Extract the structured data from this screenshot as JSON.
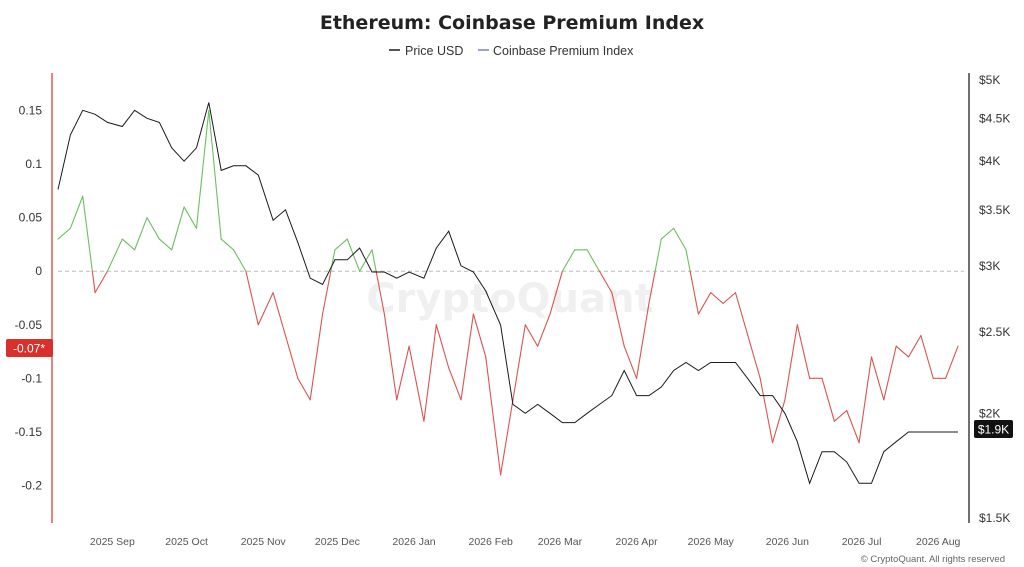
{
  "chart_data": {
    "type": "line",
    "title": "Ethereum: Coinbase Premium Index",
    "watermark": "CryptoQuant",
    "credit": "© CryptoQuant. All rights reserved",
    "current_premium_label": "-0.07*",
    "current_price_label": "$1.9K",
    "legend": [
      "Price USD",
      "Coinbase Premium Index"
    ],
    "x_tick_labels": [
      "2025 Sep",
      "2025 Oct",
      "2025 Nov",
      "2025 Dec",
      "2026 Jan",
      "2026 Feb",
      "2026 Mar",
      "2026 Apr",
      "2026 May",
      "2026 Jun",
      "2026 Jul",
      "2026 Aug"
    ],
    "left_axis": {
      "ticks": [
        0.15,
        0.1,
        0.05,
        0,
        -0.05,
        -0.1,
        -0.15,
        -0.2
      ],
      "tick_labels": [
        "0.15",
        "0.1",
        "0.05",
        "0",
        "-0.05",
        "-0.1",
        "-0.15",
        "-0.2"
      ],
      "range": [
        -0.235,
        0.185
      ]
    },
    "right_axis": {
      "scale": "log",
      "ticks": [
        1500,
        2000,
        2500,
        3000,
        3500,
        4000,
        4500,
        5000
      ],
      "tick_labels": [
        "$1.5K",
        "$2K",
        "$2.5K",
        "$3K",
        "$3.5K",
        "$4K",
        "$4.5K",
        "$5K"
      ],
      "range": [
        1500,
        5000
      ]
    },
    "colors": {
      "price": "#1a1a1a",
      "premium_positive": "#6abf5e",
      "premium_negative": "#d9534f",
      "zero_line": "#bbbbbb",
      "badge_premium": "#d9302c",
      "badge_price": "#111111",
      "left_axis_line": "#d9302c",
      "right_axis_line": "#111111"
    },
    "series": [
      {
        "name": "Price USD",
        "axis": "right",
        "x": [
          "2025-08-10",
          "2025-08-15",
          "2025-08-20",
          "2025-08-25",
          "2025-08-30",
          "2025-09-05",
          "2025-09-10",
          "2025-09-15",
          "2025-09-20",
          "2025-09-25",
          "2025-09-30",
          "2025-10-05",
          "2025-10-10",
          "2025-10-15",
          "2025-10-20",
          "2025-10-25",
          "2025-10-30",
          "2025-11-05",
          "2025-11-10",
          "2025-11-15",
          "2025-11-20",
          "2025-11-25",
          "2025-11-30",
          "2025-12-05",
          "2025-12-10",
          "2025-12-15",
          "2025-12-20",
          "2025-12-25",
          "2025-12-30",
          "2026-01-05",
          "2026-01-10",
          "2026-01-15",
          "2026-01-20",
          "2026-01-25",
          "2026-01-30",
          "2026-02-05",
          "2026-02-10",
          "2026-02-15",
          "2026-02-20",
          "2026-02-25",
          "2026-03-02",
          "2026-03-07",
          "2026-03-12",
          "2026-03-17",
          "2026-03-22",
          "2026-03-27",
          "2026-04-01",
          "2026-04-06",
          "2026-04-11",
          "2026-04-16",
          "2026-04-21",
          "2026-04-26",
          "2026-05-01",
          "2026-05-06",
          "2026-05-11",
          "2026-05-16",
          "2026-05-21",
          "2026-05-26",
          "2026-05-31",
          "2026-06-05",
          "2026-06-10",
          "2026-06-15",
          "2026-06-20",
          "2026-06-25",
          "2026-06-30",
          "2026-07-05",
          "2026-07-10",
          "2026-07-15",
          "2026-07-20",
          "2026-07-25",
          "2026-07-30",
          "2026-08-04",
          "2026-08-09"
        ],
        "values": [
          3700,
          4300,
          4600,
          4550,
          4450,
          4400,
          4600,
          4500,
          4450,
          4150,
          4000,
          4150,
          4700,
          3900,
          3950,
          3950,
          3850,
          3400,
          3500,
          3200,
          2900,
          2850,
          3050,
          3050,
          3150,
          2950,
          2950,
          2900,
          2950,
          2900,
          3150,
          3300,
          3000,
          2950,
          2800,
          2550,
          2050,
          2000,
          2050,
          2000,
          1950,
          1950,
          2000,
          2050,
          2100,
          2250,
          2100,
          2100,
          2150,
          2250,
          2300,
          2250,
          2300,
          2300,
          2300,
          2200,
          2100,
          2100,
          2000,
          1850,
          1650,
          1800,
          1800,
          1750,
          1650,
          1650,
          1800,
          1850,
          1900,
          1900,
          1900,
          1900,
          1900
        ]
      },
      {
        "name": "Coinbase Premium Index",
        "axis": "left",
        "x": [
          "2025-08-10",
          "2025-08-15",
          "2025-08-20",
          "2025-08-25",
          "2025-08-30",
          "2025-09-05",
          "2025-09-10",
          "2025-09-15",
          "2025-09-20",
          "2025-09-25",
          "2025-09-30",
          "2025-10-05",
          "2025-10-10",
          "2025-10-15",
          "2025-10-20",
          "2025-10-25",
          "2025-10-30",
          "2025-11-05",
          "2025-11-10",
          "2025-11-15",
          "2025-11-20",
          "2025-11-25",
          "2025-11-30",
          "2025-12-05",
          "2025-12-10",
          "2025-12-15",
          "2025-12-20",
          "2025-12-25",
          "2025-12-30",
          "2026-01-05",
          "2026-01-10",
          "2026-01-15",
          "2026-01-20",
          "2026-01-25",
          "2026-01-30",
          "2026-02-05",
          "2026-02-10",
          "2026-02-15",
          "2026-02-20",
          "2026-02-25",
          "2026-03-02",
          "2026-03-07",
          "2026-03-12",
          "2026-03-17",
          "2026-03-22",
          "2026-03-27",
          "2026-04-01",
          "2026-04-06",
          "2026-04-11",
          "2026-04-16",
          "2026-04-21",
          "2026-04-26",
          "2026-05-01",
          "2026-05-06",
          "2026-05-11",
          "2026-05-16",
          "2026-05-21",
          "2026-05-26",
          "2026-05-31",
          "2026-06-05",
          "2026-06-10",
          "2026-06-15",
          "2026-06-20",
          "2026-06-25",
          "2026-06-30",
          "2026-07-05",
          "2026-07-10",
          "2026-07-15",
          "2026-07-20",
          "2026-07-25",
          "2026-07-30",
          "2026-08-04",
          "2026-08-09"
        ],
        "values": [
          0.03,
          0.04,
          0.07,
          -0.02,
          0.0,
          0.03,
          0.02,
          0.05,
          0.03,
          0.02,
          0.06,
          0.04,
          0.15,
          0.03,
          0.02,
          0.0,
          -0.05,
          -0.02,
          -0.06,
          -0.1,
          -0.12,
          -0.04,
          0.02,
          0.03,
          0.0,
          0.02,
          -0.04,
          -0.12,
          -0.07,
          -0.14,
          -0.05,
          -0.09,
          -0.12,
          -0.04,
          -0.08,
          -0.19,
          -0.12,
          -0.05,
          -0.07,
          -0.04,
          0.0,
          0.02,
          0.02,
          0.0,
          -0.02,
          -0.07,
          -0.1,
          -0.03,
          0.03,
          0.04,
          0.02,
          -0.04,
          -0.02,
          -0.03,
          -0.02,
          -0.06,
          -0.1,
          -0.16,
          -0.12,
          -0.05,
          -0.1,
          -0.1,
          -0.14,
          -0.13,
          -0.16,
          -0.08,
          -0.12,
          -0.07,
          -0.08,
          -0.06,
          -0.1,
          -0.1,
          -0.07
        ]
      }
    ]
  }
}
